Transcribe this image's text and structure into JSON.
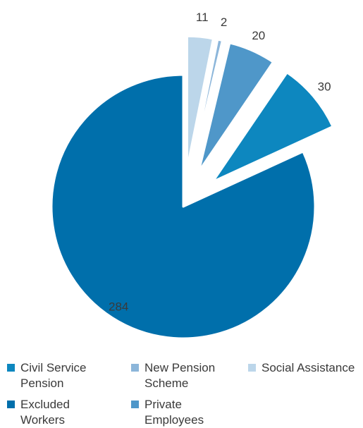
{
  "chart_data": {
    "type": "pie",
    "title": "",
    "slices": [
      {
        "label": "Social Assistance",
        "value": 11,
        "color": "#bcd6ea",
        "exploded": true
      },
      {
        "label": "New Pension Scheme",
        "value": 2,
        "color": "#8cb6da",
        "exploded": true
      },
      {
        "label": "Private Employees",
        "value": 20,
        "color": "#4f97c9",
        "exploded": true
      },
      {
        "label": "Civil Service Pension",
        "value": 30,
        "color": "#0d87bf",
        "exploded": true
      },
      {
        "label": "Excluded Workers",
        "value": 284,
        "color": "#006fab",
        "exploded": false
      }
    ],
    "legend_position": "bottom"
  },
  "legend": [
    {
      "label": "Civil Service Pension",
      "color": "#0d87bf"
    },
    {
      "label": "Excluded Workers",
      "color": "#006fab"
    },
    {
      "label": "New Pension Scheme",
      "color": "#8cb6da"
    },
    {
      "label": "Private Employees",
      "color": "#4f97c9"
    },
    {
      "label": "Social Assistance",
      "color": "#bcd6ea"
    }
  ]
}
